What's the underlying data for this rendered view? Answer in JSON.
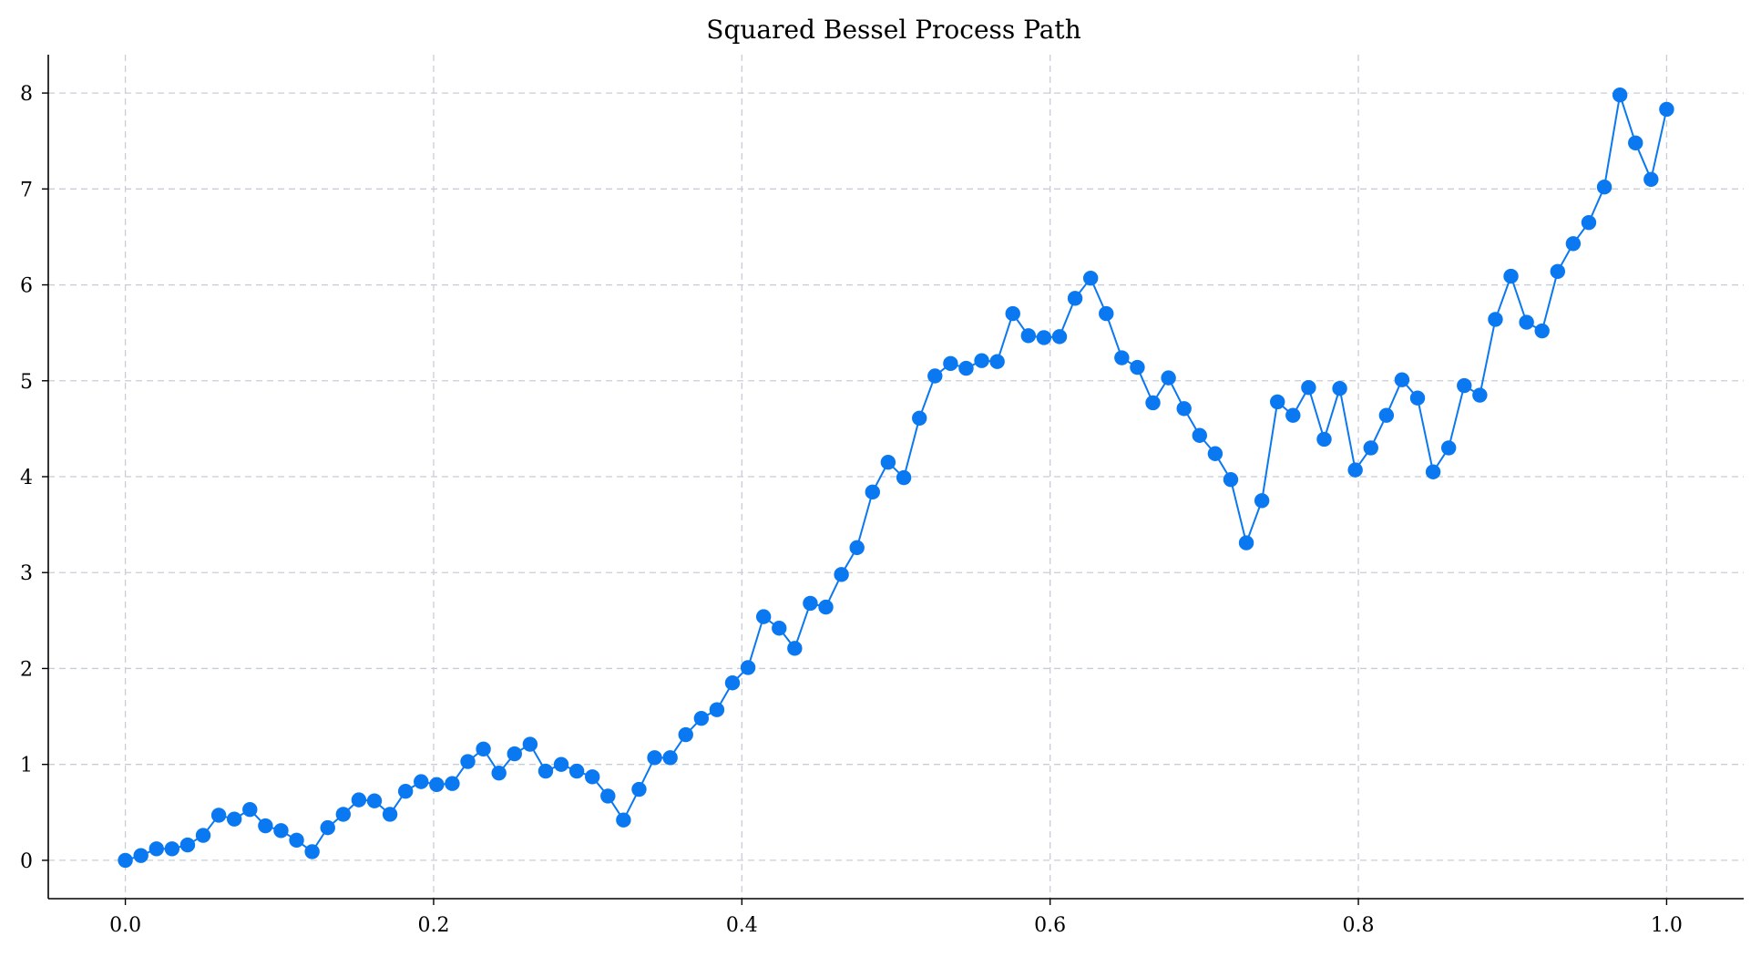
{
  "chart_data": {
    "type": "line",
    "title": "Squared Bessel Process Path",
    "xlabel": "",
    "ylabel": "",
    "xlim": [
      -0.05,
      1.05
    ],
    "ylim": [
      -0.4,
      8.4
    ],
    "x_ticks": [
      0.0,
      0.2,
      0.4,
      0.6,
      0.8,
      1.0
    ],
    "x_tick_labels": [
      "0.0",
      "0.2",
      "0.4",
      "0.6",
      "0.8",
      "1.0"
    ],
    "y_ticks": [
      0,
      1,
      2,
      3,
      4,
      5,
      6,
      7,
      8
    ],
    "y_tick_labels": [
      "0",
      "1",
      "2",
      "3",
      "4",
      "5",
      "6",
      "7",
      "8"
    ],
    "grid": true,
    "legend": false,
    "color": "#0a78f0",
    "marker": "circle",
    "series": [
      {
        "x": [
          0.0,
          0.0101,
          0.0202,
          0.0303,
          0.0404,
          0.0505,
          0.0606,
          0.0707,
          0.0808,
          0.0909,
          0.101,
          0.1111,
          0.1212,
          0.1313,
          0.1414,
          0.1515,
          0.1616,
          0.1717,
          0.1818,
          0.1919,
          0.202,
          0.2121,
          0.2222,
          0.2323,
          0.2424,
          0.2525,
          0.2626,
          0.2727,
          0.2828,
          0.2929,
          0.303,
          0.3131,
          0.3232,
          0.3333,
          0.3434,
          0.3535,
          0.3636,
          0.3737,
          0.3838,
          0.3939,
          0.404,
          0.4141,
          0.4242,
          0.4343,
          0.4444,
          0.4545,
          0.4646,
          0.4747,
          0.4848,
          0.4949,
          0.5051,
          0.5152,
          0.5253,
          0.5354,
          0.5455,
          0.5556,
          0.5657,
          0.5758,
          0.5859,
          0.596,
          0.6061,
          0.6162,
          0.6263,
          0.6364,
          0.6465,
          0.6566,
          0.6667,
          0.6768,
          0.6869,
          0.697,
          0.7071,
          0.7172,
          0.7273,
          0.7374,
          0.7475,
          0.7576,
          0.7677,
          0.7778,
          0.7879,
          0.798,
          0.8081,
          0.8182,
          0.8283,
          0.8384,
          0.8485,
          0.8586,
          0.8687,
          0.8788,
          0.8889,
          0.899,
          0.9091,
          0.9192,
          0.9293,
          0.9394,
          0.9495,
          0.9596,
          0.9697,
          0.9798,
          0.9899,
          1.0
        ],
        "y": [
          0.0,
          0.05,
          0.12,
          0.12,
          0.16,
          0.26,
          0.47,
          0.43,
          0.53,
          0.36,
          0.31,
          0.21,
          0.09,
          0.34,
          0.48,
          0.63,
          0.62,
          0.48,
          0.72,
          0.82,
          0.79,
          0.8,
          1.03,
          1.16,
          0.91,
          1.11,
          1.21,
          0.93,
          1.0,
          0.93,
          0.87,
          0.67,
          0.42,
          0.74,
          1.07,
          1.07,
          1.31,
          1.48,
          1.57,
          1.85,
          2.01,
          2.54,
          2.42,
          2.21,
          2.68,
          2.64,
          2.98,
          3.26,
          3.84,
          4.15,
          3.99,
          4.61,
          5.05,
          5.18,
          5.13,
          5.21,
          5.2,
          5.7,
          5.47,
          5.45,
          5.46,
          5.86,
          6.07,
          5.7,
          5.24,
          5.14,
          4.77,
          5.03,
          4.71,
          4.43,
          4.24,
          3.97,
          3.31,
          3.75,
          4.78,
          4.64,
          4.93,
          4.39,
          4.92,
          4.07,
          4.3,
          4.64,
          5.01,
          4.82,
          4.05,
          4.3,
          4.95,
          4.85,
          5.64,
          6.09,
          5.61,
          5.52,
          6.14,
          6.43,
          6.65,
          7.02,
          7.98,
          7.48,
          7.1,
          7.83
        ]
      }
    ]
  }
}
